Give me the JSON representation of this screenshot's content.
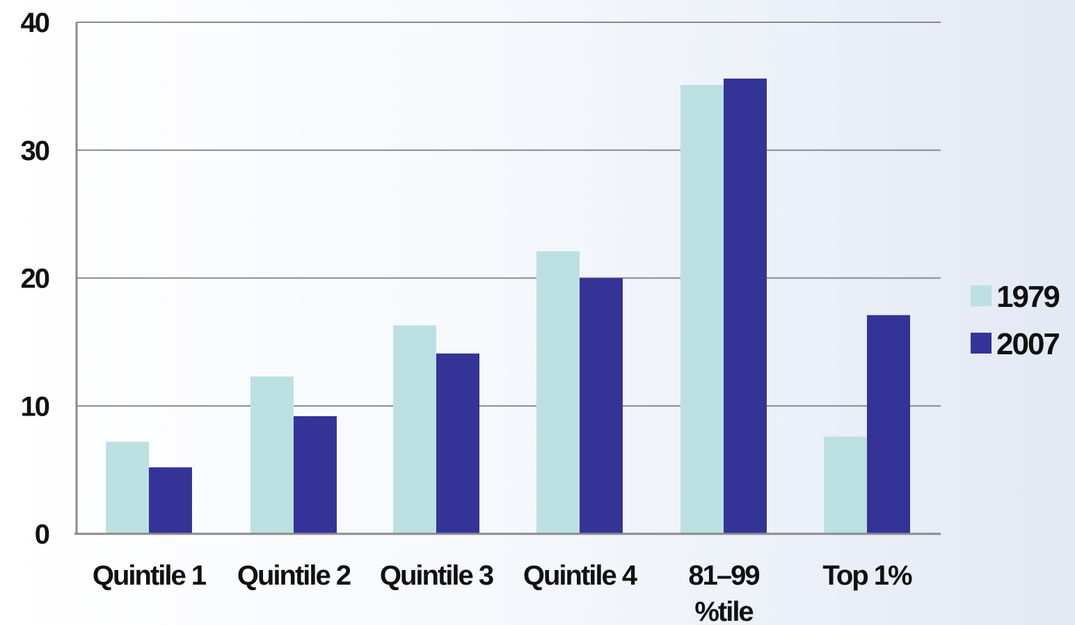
{
  "chart_data": {
    "type": "bar",
    "categories": [
      "Quintile 1",
      "Quintile 2",
      "Quintile 3",
      "Quintile 4",
      "81-99 %tile",
      "Top 1%"
    ],
    "category_lines": [
      [
        "Quintile 1"
      ],
      [
        "Quintile 2"
      ],
      [
        "Quintile 3"
      ],
      [
        "Quintile 4"
      ],
      [
        "81–99",
        "%tile"
      ],
      [
        "Top 1%"
      ]
    ],
    "series": [
      {
        "name": "1979",
        "color": "#bce0e2",
        "values": [
          7.2,
          12.3,
          16.3,
          22.1,
          35.1,
          7.6
        ]
      },
      {
        "name": "2007",
        "color": "#343398",
        "values": [
          5.2,
          9.2,
          14.1,
          20.0,
          35.6,
          17.1
        ]
      }
    ],
    "y_ticks": [
      0,
      10,
      20,
      30,
      40
    ],
    "ylim": [
      0,
      40
    ],
    "grid": true,
    "legend": "right",
    "title": "",
    "xlabel": "",
    "ylabel": ""
  }
}
